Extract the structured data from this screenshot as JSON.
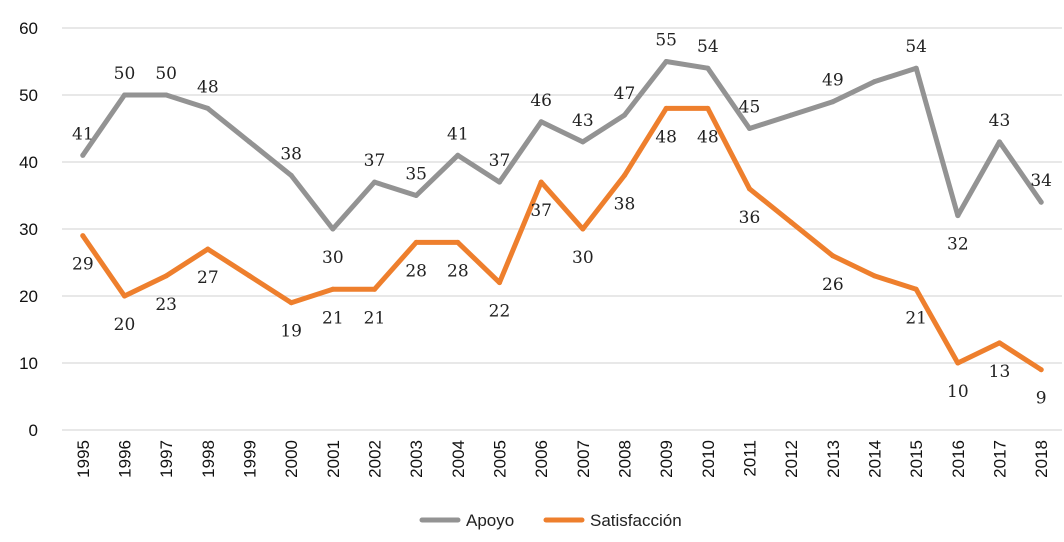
{
  "chart_data": {
    "type": "line",
    "title": "",
    "xlabel": "",
    "ylabel": "",
    "ylim": [
      0,
      60
    ],
    "yticks": [
      0,
      10,
      20,
      30,
      40,
      50,
      60
    ],
    "grid": true,
    "legend_position": "bottom-center",
    "categories": [
      "1995",
      "1996",
      "1997",
      "1998",
      "1999",
      "2000",
      "2001",
      "2002",
      "2003",
      "2004",
      "2005",
      "2006",
      "2007",
      "2008",
      "2009",
      "2010",
      "2011",
      "2012",
      "2013",
      "2014",
      "2015",
      "2016",
      "2017",
      "2018"
    ],
    "series": [
      {
        "name": "Apoyo",
        "color": "#939393",
        "values": [
          41,
          50,
          50,
          48,
          43,
          38,
          30,
          37,
          35,
          41,
          37,
          46,
          43,
          47,
          55,
          54,
          45,
          47,
          49,
          52,
          54,
          32,
          43,
          34
        ],
        "labels": [
          "41",
          "50",
          "50",
          "48",
          "",
          "38",
          "30",
          "37",
          "35",
          "41",
          "37",
          "46",
          "43",
          "47",
          "55",
          "54",
          "45",
          "",
          "49",
          "",
          "54",
          "32",
          "43",
          "34"
        ]
      },
      {
        "name": "Satisfacción",
        "color": "#ee7f2d",
        "values": [
          29,
          20,
          23,
          27,
          23,
          19,
          21,
          21,
          28,
          28,
          22,
          37,
          30,
          38,
          48,
          48,
          36,
          31,
          26,
          23,
          21,
          10,
          13,
          9
        ],
        "labels": [
          "29",
          "20",
          "23",
          "27",
          "",
          "19",
          "21",
          "21",
          "28",
          "28",
          "22",
          "37",
          "30",
          "38",
          "48",
          "48",
          "36",
          "",
          "26",
          "",
          "21",
          "10",
          "13",
          "9"
        ]
      }
    ]
  }
}
